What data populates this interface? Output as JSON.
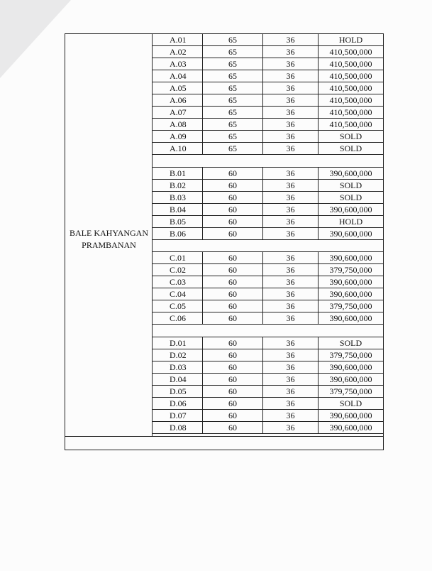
{
  "project": [
    "BALE KAHYANGAN",
    "PRAMBANAN"
  ],
  "blocks": [
    {
      "rows": [
        [
          "A.01",
          "65",
          "36",
          "HOLD"
        ],
        [
          "A.02",
          "65",
          "36",
          "410,500,000"
        ],
        [
          "A.03",
          "65",
          "36",
          "410,500,000"
        ],
        [
          "A.04",
          "65",
          "36",
          "410,500,000"
        ],
        [
          "A.05",
          "65",
          "36",
          "410,500,000"
        ],
        [
          "A.06",
          "65",
          "36",
          "410,500,000"
        ],
        [
          "A.07",
          "65",
          "36",
          "410,500,000"
        ],
        [
          "A.08",
          "65",
          "36",
          "410,500,000"
        ],
        [
          "A.09",
          "65",
          "36",
          "SOLD"
        ],
        [
          "A.10",
          "65",
          "36",
          "SOLD"
        ]
      ]
    },
    {
      "rows": [
        [
          "B.01",
          "60",
          "36",
          "390,600,000"
        ],
        [
          "B.02",
          "60",
          "36",
          "SOLD"
        ],
        [
          "B.03",
          "60",
          "36",
          "SOLD"
        ],
        [
          "B.04",
          "60",
          "36",
          "390,600,000"
        ],
        [
          "B.05",
          "60",
          "36",
          "HOLD"
        ],
        [
          "B.06",
          "60",
          "36",
          "390,600,000"
        ]
      ]
    },
    {
      "rows": [
        [
          "C.01",
          "60",
          "36",
          "390,600,000"
        ],
        [
          "C.02",
          "60",
          "36",
          "379,750,000"
        ],
        [
          "C.03",
          "60",
          "36",
          "390,600,000"
        ],
        [
          "C.04",
          "60",
          "36",
          "390,600,000"
        ],
        [
          "C.05",
          "60",
          "36",
          "379,750,000"
        ],
        [
          "C.06",
          "60",
          "36",
          "390,600,000"
        ]
      ]
    },
    {
      "rows": [
        [
          "D.01",
          "60",
          "36",
          "SOLD"
        ],
        [
          "D.02",
          "60",
          "36",
          "379,750,000"
        ],
        [
          "D.03",
          "60",
          "36",
          "390,600,000"
        ],
        [
          "D.04",
          "60",
          "36",
          "390,600,000"
        ],
        [
          "D.05",
          "60",
          "36",
          "379,750,000"
        ],
        [
          "D.06",
          "60",
          "36",
          "SOLD"
        ],
        [
          "D.07",
          "60",
          "36",
          "390,600,000"
        ],
        [
          "D.08",
          "60",
          "36",
          "390,600,000"
        ]
      ]
    }
  ]
}
